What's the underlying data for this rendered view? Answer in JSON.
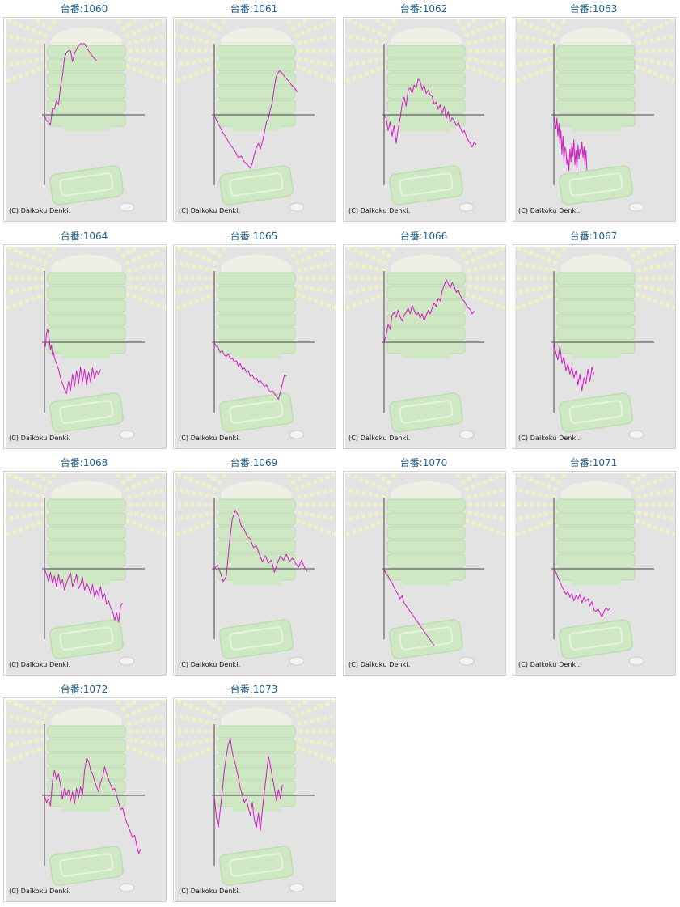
{
  "colors": {
    "title": "#1f5f8b",
    "line": "#d21bc4",
    "axis": "#444444",
    "panel_bg": "#e3e3e3",
    "watermark_green": "#cfe8c4",
    "watermark_rays": "#f0f0c6"
  },
  "chart_data": [
    {
      "type": "line",
      "title": "台番:1060",
      "copyright": "(C) Daikoku Denki.",
      "x": [
        0,
        2,
        4,
        6,
        8,
        10,
        12,
        14,
        16,
        18,
        20,
        22,
        24,
        26,
        28,
        30,
        33,
        36,
        40,
        44,
        48,
        52
      ],
      "y": [
        0,
        -8,
        -10,
        -14,
        10,
        8,
        20,
        14,
        40,
        55,
        80,
        88,
        90,
        90,
        75,
        86,
        95,
        100,
        100,
        90,
        82,
        76
      ]
    },
    {
      "type": "line",
      "title": "台番:1061",
      "copyright": "(C) Daikoku Denki.",
      "x": [
        0,
        3,
        6,
        9,
        12,
        15,
        18,
        21,
        24,
        27,
        30,
        33,
        36,
        38,
        40,
        42,
        44,
        46,
        48,
        50,
        52,
        54,
        56,
        58,
        60,
        62,
        65,
        68,
        71,
        74,
        77,
        80,
        83
      ],
      "y": [
        0,
        -10,
        -18,
        -26,
        -32,
        -40,
        -45,
        -52,
        -60,
        -58,
        -66,
        -70,
        -75,
        -68,
        -55,
        -46,
        -40,
        -48,
        -38,
        -25,
        -10,
        -5,
        8,
        18,
        40,
        55,
        62,
        58,
        52,
        48,
        42,
        38,
        32
      ]
    },
    {
      "type": "line",
      "title": "台番:1062",
      "copyright": "(C) Daikoku Denki.",
      "x": [
        0,
        2,
        4,
        6,
        8,
        10,
        12,
        14,
        16,
        18,
        20,
        22,
        24,
        26,
        28,
        30,
        32,
        34,
        36,
        38,
        40,
        42,
        44,
        46,
        48,
        50,
        52,
        54,
        56,
        58,
        60,
        62,
        64,
        66,
        68,
        70,
        72,
        74,
        76,
        78,
        80,
        82,
        84,
        86,
        88,
        90,
        92
      ],
      "y": [
        0,
        -5,
        -22,
        -10,
        -30,
        -15,
        -40,
        -20,
        -5,
        15,
        25,
        12,
        35,
        38,
        30,
        42,
        38,
        50,
        48,
        35,
        42,
        30,
        35,
        28,
        26,
        15,
        18,
        8,
        14,
        2,
        12,
        -5,
        5,
        -10,
        -4,
        -8,
        -15,
        -10,
        -18,
        -25,
        -22,
        -30,
        -36,
        -40,
        -45,
        -38,
        -42
      ]
    },
    {
      "type": "line",
      "title": "台番:1063",
      "copyright": "(C) Daikoku Denki.",
      "x": [
        0,
        1,
        2,
        3,
        4,
        5,
        6,
        7,
        8,
        9,
        10,
        11,
        12,
        13,
        14,
        15,
        16,
        17,
        18,
        19,
        20,
        21,
        22,
        23,
        24,
        25,
        26,
        27,
        28,
        29,
        30,
        31,
        32,
        33
      ],
      "y": [
        0,
        -10,
        -20,
        -5,
        -30,
        -12,
        -40,
        -22,
        -55,
        -30,
        -65,
        -45,
        -50,
        -70,
        -60,
        -78,
        -48,
        -66,
        -40,
        -58,
        -35,
        -70,
        -50,
        -78,
        -42,
        -62,
        -48,
        -55,
        -38,
        -60,
        -45,
        -70,
        -50,
        -78
      ]
    },
    {
      "type": "line",
      "title": "台番:1064",
      "copyright": "(C) Daikoku Denki.",
      "x": [
        0,
        1,
        2,
        3,
        4,
        5,
        6,
        7,
        8,
        9,
        10,
        12,
        14,
        16,
        18,
        20,
        22,
        24,
        26,
        28,
        30,
        32,
        34,
        36,
        38,
        40,
        42,
        44,
        46,
        48,
        50,
        52,
        54,
        56
      ],
      "y": [
        0,
        -6,
        12,
        18,
        14,
        0,
        -10,
        -4,
        -18,
        -14,
        -22,
        -30,
        -38,
        -50,
        -58,
        -66,
        -72,
        -55,
        -68,
        -45,
        -62,
        -40,
        -58,
        -35,
        -55,
        -38,
        -60,
        -42,
        -56,
        -36,
        -52,
        -40,
        -46,
        -38
      ]
    },
    {
      "type": "line",
      "title": "台番:1065",
      "copyright": "(C) Daikoku Denki.",
      "x": [
        0,
        2,
        4,
        6,
        8,
        10,
        12,
        14,
        16,
        18,
        20,
        22,
        24,
        26,
        28,
        30,
        32,
        34,
        36,
        38,
        40,
        42,
        44,
        46,
        48,
        50,
        52,
        54,
        56,
        58,
        60,
        62,
        64,
        66,
        68,
        70,
        72
      ],
      "y": [
        0,
        -6,
        -8,
        -14,
        -12,
        -18,
        -20,
        -16,
        -24,
        -22,
        -28,
        -26,
        -34,
        -30,
        -38,
        -36,
        -42,
        -40,
        -48,
        -46,
        -52,
        -50,
        -56,
        -54,
        -58,
        -62,
        -60,
        -66,
        -70,
        -68,
        -72,
        -76,
        -80,
        -70,
        -58,
        -46,
        -48
      ]
    },
    {
      "type": "line",
      "title": "台番:1066",
      "copyright": "(C) Daikoku Denki.",
      "x": [
        0,
        2,
        4,
        6,
        8,
        10,
        12,
        14,
        16,
        18,
        20,
        22,
        24,
        26,
        28,
        30,
        32,
        34,
        36,
        38,
        40,
        42,
        44,
        46,
        48,
        50,
        52,
        54,
        56,
        58,
        60,
        62,
        64,
        66,
        68,
        70,
        72,
        74,
        76,
        78,
        80,
        82,
        84,
        86,
        88,
        90
      ],
      "y": [
        0,
        10,
        25,
        18,
        38,
        42,
        35,
        45,
        36,
        30,
        38,
        42,
        48,
        40,
        52,
        45,
        38,
        42,
        34,
        40,
        30,
        38,
        45,
        40,
        48,
        55,
        50,
        62,
        58,
        72,
        80,
        88,
        82,
        76,
        84,
        78,
        70,
        74,
        66,
        60,
        58,
        52,
        48,
        46,
        40,
        44
      ]
    },
    {
      "type": "line",
      "title": "台番:1067",
      "copyright": "(C) Daikoku Denki.",
      "x": [
        0,
        2,
        4,
        6,
        8,
        10,
        12,
        14,
        16,
        18,
        20,
        22,
        24,
        26,
        28,
        30,
        32,
        34,
        36,
        38,
        40
      ],
      "y": [
        0,
        -15,
        -25,
        -5,
        -30,
        -20,
        -40,
        -30,
        -45,
        -35,
        -50,
        -40,
        -60,
        -45,
        -68,
        -50,
        -58,
        -38,
        -55,
        -35,
        -45
      ]
    },
    {
      "type": "line",
      "title": "台番:1068",
      "copyright": "(C) Daikoku Denki.",
      "x": [
        0,
        2,
        4,
        6,
        8,
        10,
        12,
        14,
        16,
        18,
        20,
        22,
        24,
        26,
        28,
        30,
        32,
        34,
        36,
        38,
        40,
        42,
        44,
        46,
        48,
        50,
        52,
        54,
        56,
        58,
        60,
        62,
        64,
        66,
        68,
        70,
        72,
        74,
        76,
        78
      ],
      "y": [
        0,
        -8,
        -18,
        -5,
        -20,
        -10,
        -25,
        -8,
        -22,
        -15,
        -30,
        -20,
        -12,
        -5,
        -25,
        -18,
        -8,
        -28,
        -22,
        -12,
        -30,
        -20,
        -26,
        -35,
        -22,
        -40,
        -30,
        -38,
        -25,
        -42,
        -35,
        -50,
        -45,
        -55,
        -60,
        -72,
        -62,
        -75,
        -52,
        -48
      ]
    },
    {
      "type": "line",
      "title": "台番:1069",
      "copyright": "(C) Daikoku Denki.",
      "x": [
        0,
        3,
        6,
        9,
        12,
        15,
        18,
        21,
        24,
        27,
        30,
        33,
        36,
        39,
        42,
        45,
        48,
        51,
        54,
        57,
        60,
        63,
        66,
        69,
        72,
        75,
        78,
        81,
        84,
        87,
        90,
        93
      ],
      "y": [
        0,
        5,
        -5,
        -18,
        -10,
        35,
        70,
        82,
        75,
        60,
        55,
        45,
        42,
        30,
        32,
        20,
        10,
        18,
        8,
        12,
        -5,
        8,
        18,
        12,
        20,
        10,
        15,
        8,
        2,
        12,
        2,
        -4
      ]
    },
    {
      "type": "line",
      "title": "台番:1070",
      "copyright": "(C) Daikoku Denki.",
      "x": [
        0,
        2,
        4,
        6,
        8,
        10,
        12,
        14,
        16,
        18,
        20,
        22,
        24,
        26,
        28,
        30,
        32,
        34,
        36,
        38,
        40,
        42,
        44,
        46,
        48,
        50
      ],
      "y": [
        0,
        -8,
        -10,
        -16,
        -20,
        -26,
        -32,
        -36,
        -42,
        -38,
        -48,
        -52,
        -56,
        -60,
        -64,
        -68,
        -72,
        -76,
        -80,
        -84,
        -88,
        -92,
        -96,
        -100,
        -104,
        -108
      ]
    },
    {
      "type": "line",
      "title": "台番:1071",
      "copyright": "(C) Daikoku Denki.",
      "x": [
        0,
        2,
        4,
        6,
        8,
        10,
        12,
        14,
        16,
        18,
        20,
        22,
        24,
        26,
        28,
        30,
        32,
        34,
        36,
        38,
        40,
        42,
        44,
        46,
        48,
        50,
        52,
        54,
        56
      ],
      "y": [
        0,
        -5,
        -12,
        -18,
        -25,
        -30,
        -36,
        -32,
        -40,
        -35,
        -45,
        -38,
        -42,
        -36,
        -48,
        -40,
        -45,
        -42,
        -52,
        -46,
        -58,
        -60,
        -56,
        -62,
        -68,
        -60,
        -55,
        -58,
        -56
      ]
    },
    {
      "type": "line",
      "title": "台番:1072",
      "copyright": "(C) Daikoku Denki.",
      "x": [
        0,
        2,
        4,
        6,
        8,
        10,
        12,
        14,
        16,
        18,
        20,
        22,
        24,
        26,
        28,
        30,
        32,
        34,
        36,
        38,
        40,
        42,
        44,
        46,
        48,
        50,
        52,
        54,
        56,
        58,
        60,
        62,
        64,
        66,
        68,
        70,
        72,
        74,
        76,
        78,
        80,
        82,
        84,
        86,
        88,
        90,
        92,
        94,
        96
      ],
      "y": [
        0,
        -10,
        -5,
        -15,
        20,
        35,
        22,
        30,
        15,
        -5,
        10,
        0,
        8,
        -8,
        5,
        -12,
        10,
        -3,
        12,
        0,
        35,
        52,
        48,
        35,
        30,
        20,
        12,
        5,
        18,
        25,
        40,
        30,
        22,
        15,
        8,
        10,
        0,
        -10,
        -20,
        -18,
        -30,
        -38,
        -45,
        -52,
        -60,
        -56,
        -70,
        -82,
        -75
      ]
    },
    {
      "type": "line",
      "title": "台番:1073",
      "copyright": "(C) Daikoku Denki.",
      "x": [
        0,
        2,
        4,
        6,
        8,
        10,
        12,
        14,
        16,
        18,
        20,
        22,
        24,
        26,
        28,
        30,
        32,
        34,
        36,
        38,
        40,
        42,
        44,
        46,
        48,
        50,
        52,
        54,
        56,
        58,
        60,
        62,
        64,
        66,
        68
      ],
      "y": [
        0,
        -30,
        -45,
        -20,
        5,
        35,
        55,
        72,
        80,
        60,
        50,
        38,
        25,
        10,
        0,
        -10,
        -5,
        -18,
        -28,
        -10,
        -35,
        -45,
        -25,
        -50,
        -20,
        5,
        30,
        55,
        42,
        25,
        10,
        -8,
        8,
        -5,
        15
      ]
    }
  ]
}
